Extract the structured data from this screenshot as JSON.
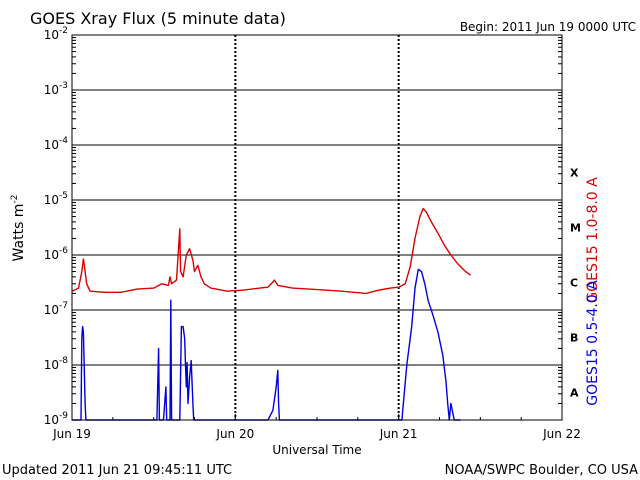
{
  "chart_data": {
    "type": "line",
    "title": "GOES Xray Flux (5 minute data)",
    "begin_label": "Begin:  2011 Jun 19 0000 UTC",
    "xlabel": "Universal Time",
    "ylabel": "Watts m",
    "ylabel_exponent": "-2",
    "y_scale": "log",
    "ylim": [
      1e-09,
      0.01
    ],
    "y_ticks": [
      {
        "base": "10",
        "exp": "-2",
        "value": 0.01
      },
      {
        "base": "10",
        "exp": "-3",
        "value": 0.001
      },
      {
        "base": "10",
        "exp": "-4",
        "value": 0.0001
      },
      {
        "base": "10",
        "exp": "-5",
        "value": 1e-05
      },
      {
        "base": "10",
        "exp": "-6",
        "value": 1e-06
      },
      {
        "base": "10",
        "exp": "-7",
        "value": 1e-07
      },
      {
        "base": "10",
        "exp": "-8",
        "value": 1e-08
      },
      {
        "base": "10",
        "exp": "-9",
        "value": 1e-09
      }
    ],
    "x_ticks": [
      "Jun 19",
      "Jun 20",
      "Jun 21",
      "Jun 22"
    ],
    "xlim_days": [
      0,
      3
    ],
    "flare_classes": [
      {
        "label": "X",
        "value": 0.0001
      },
      {
        "label": "M",
        "value": 1e-05
      },
      {
        "label": "C",
        "value": 1e-06
      },
      {
        "label": "B",
        "value": 1e-07
      },
      {
        "label": "A",
        "value": 1e-08
      }
    ],
    "grid": "horizontal at each decade",
    "series": [
      {
        "name": "GOES15 1.0-8.0 A",
        "color": "#dd0000",
        "points": [
          [
            0.0,
            2.2e-07
          ],
          [
            0.04,
            2.5e-07
          ],
          [
            0.06,
            5e-07
          ],
          [
            0.07,
            8.5e-07
          ],
          [
            0.08,
            5e-07
          ],
          [
            0.09,
            3e-07
          ],
          [
            0.11,
            2.2e-07
          ],
          [
            0.2,
            2.1e-07
          ],
          [
            0.3,
            2.1e-07
          ],
          [
            0.4,
            2.4e-07
          ],
          [
            0.5,
            2.5e-07
          ],
          [
            0.55,
            3e-07
          ],
          [
            0.59,
            2.8e-07
          ],
          [
            0.6,
            4e-07
          ],
          [
            0.61,
            3e-07
          ],
          [
            0.64,
            3.5e-07
          ],
          [
            0.66,
            3e-06
          ],
          [
            0.665,
            5e-07
          ],
          [
            0.68,
            4e-07
          ],
          [
            0.7,
            1e-06
          ],
          [
            0.72,
            1.3e-06
          ],
          [
            0.74,
            8e-07
          ],
          [
            0.75,
            5e-07
          ],
          [
            0.77,
            6.5e-07
          ],
          [
            0.79,
            4e-07
          ],
          [
            0.81,
            3e-07
          ],
          [
            0.85,
            2.5e-07
          ],
          [
            0.95,
            2.2e-07
          ],
          [
            1.05,
            2.3e-07
          ],
          [
            1.15,
            2.5e-07
          ],
          [
            1.2,
            2.6e-07
          ],
          [
            1.24,
            3.5e-07
          ],
          [
            1.26,
            2.8e-07
          ],
          [
            1.35,
            2.5e-07
          ],
          [
            1.45,
            2.4e-07
          ],
          [
            1.55,
            2.3e-07
          ],
          [
            1.65,
            2.2e-07
          ],
          [
            1.8,
            2e-07
          ],
          [
            1.88,
            2.3e-07
          ],
          [
            1.95,
            2.5e-07
          ],
          [
            2.0,
            2.6e-07
          ],
          [
            2.04,
            3e-07
          ],
          [
            2.07,
            6e-07
          ],
          [
            2.1,
            2e-06
          ],
          [
            2.13,
            5e-06
          ],
          [
            2.15,
            7e-06
          ],
          [
            2.17,
            6e-06
          ],
          [
            2.2,
            4e-06
          ],
          [
            2.24,
            2.5e-06
          ],
          [
            2.28,
            1.5e-06
          ],
          [
            2.32,
            1e-06
          ],
          [
            2.36,
            7e-07
          ],
          [
            2.41,
            5e-07
          ],
          [
            2.44,
            4.3e-07
          ]
        ]
      },
      {
        "name": "GOES15 0.5-4.0 A",
        "color": "#0000dd",
        "points": [
          [
            0.0,
            1e-09
          ],
          [
            0.055,
            1e-09
          ],
          [
            0.06,
            3e-08
          ],
          [
            0.065,
            5e-08
          ],
          [
            0.07,
            4e-08
          ],
          [
            0.075,
            8e-09
          ],
          [
            0.08,
            2e-09
          ],
          [
            0.085,
            1e-09
          ],
          [
            0.5,
            1e-09
          ],
          [
            0.52,
            1e-09
          ],
          [
            0.53,
            2e-08
          ],
          [
            0.535,
            1e-09
          ],
          [
            0.56,
            1e-09
          ],
          [
            0.575,
            4e-09
          ],
          [
            0.58,
            1e-09
          ],
          [
            0.6,
            1e-09
          ],
          [
            0.605,
            1.5e-07
          ],
          [
            0.61,
            1e-09
          ],
          [
            0.66,
            1e-09
          ],
          [
            0.67,
            5e-08
          ],
          [
            0.68,
            5e-08
          ],
          [
            0.69,
            3e-08
          ],
          [
            0.695,
            1e-08
          ],
          [
            0.7,
            4e-09
          ],
          [
            0.705,
            1.1e-08
          ],
          [
            0.71,
            2e-09
          ],
          [
            0.72,
            6e-09
          ],
          [
            0.73,
            1.2e-08
          ],
          [
            0.74,
            2e-09
          ],
          [
            0.745,
            1e-09
          ],
          [
            0.85,
            1e-09
          ],
          [
            1.2,
            1e-09
          ],
          [
            1.23,
            1.5e-09
          ],
          [
            1.25,
            4e-09
          ],
          [
            1.26,
            8e-09
          ],
          [
            1.265,
            2e-09
          ],
          [
            1.27,
            1e-09
          ],
          [
            1.3,
            1e-09
          ],
          [
            2.0,
            1e-09
          ],
          [
            2.02,
            1e-09
          ],
          [
            2.05,
            1e-08
          ],
          [
            2.08,
            5e-08
          ],
          [
            2.1,
            2.5e-07
          ],
          [
            2.12,
            5.5e-07
          ],
          [
            2.14,
            5e-07
          ],
          [
            2.16,
            3e-07
          ],
          [
            2.18,
            1.5e-07
          ],
          [
            2.21,
            8e-08
          ],
          [
            2.24,
            4e-08
          ],
          [
            2.27,
            1.5e-08
          ],
          [
            2.29,
            5e-09
          ],
          [
            2.3,
            2e-09
          ],
          [
            2.31,
            1e-09
          ],
          [
            2.32,
            2e-09
          ],
          [
            2.34,
            1e-09
          ],
          [
            2.38,
            1e-09
          ]
        ]
      }
    ]
  },
  "footer": {
    "updated": "Updated 2011 Jun 21 09:45:11 UTC",
    "source": "NOAA/SWPC Boulder, CO USA"
  }
}
